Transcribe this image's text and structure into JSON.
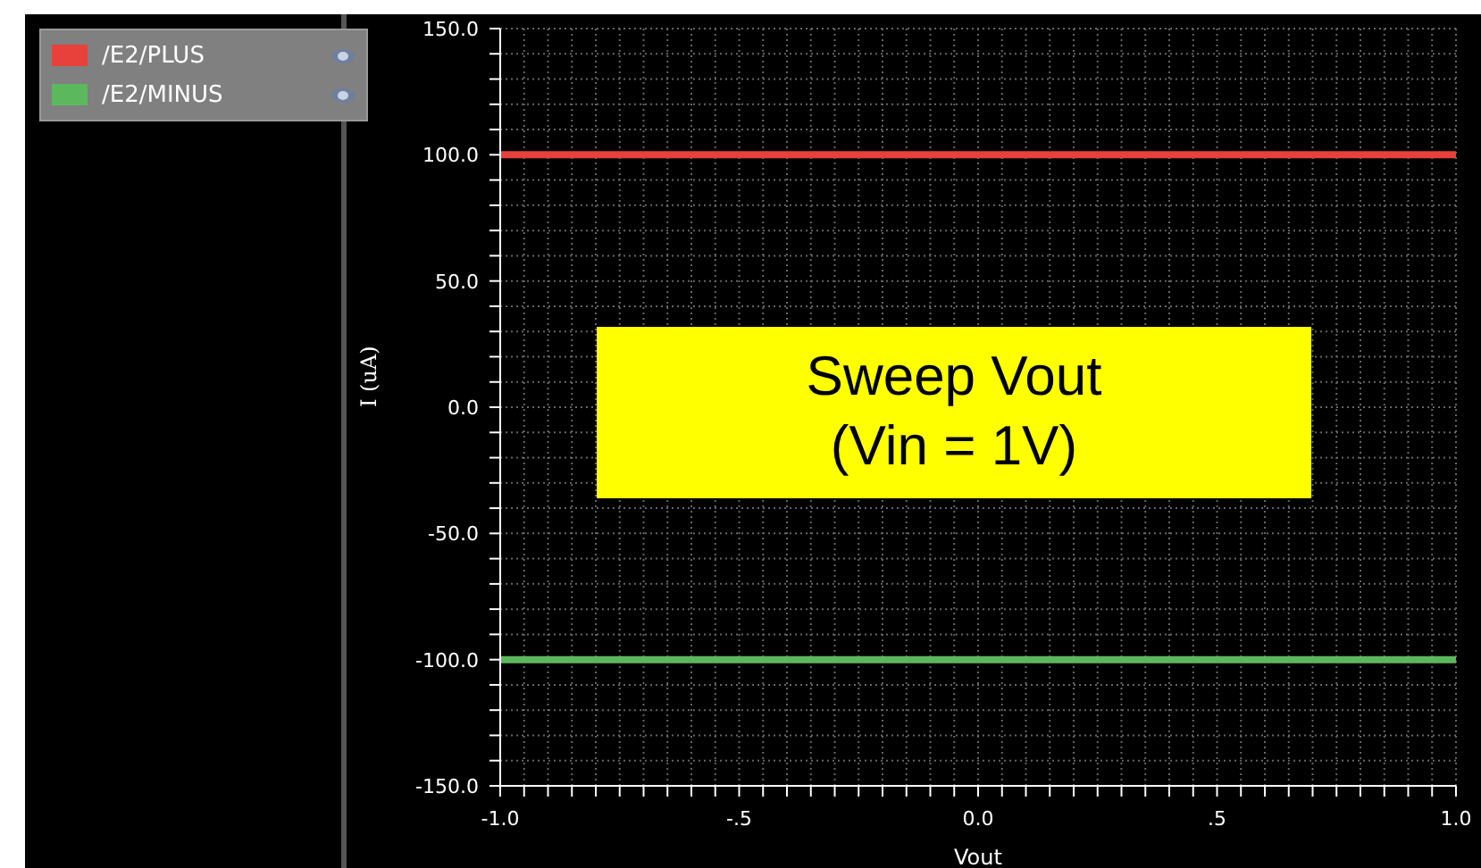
{
  "chart_data": {
    "type": "line",
    "xlabel": "Vout",
    "ylabel": "I (uA)",
    "annotations": [
      "Sweep Vout\n(Vin = 1V)"
    ],
    "x": [
      -1,
      1
    ],
    "series": [
      {
        "name": "/E2/PLUS",
        "color": "#e8403a",
        "values": [
          100,
          100
        ]
      },
      {
        "name": "/E2/MINUS",
        "color": "#5cb85c",
        "values": [
          -100,
          -100
        ]
      }
    ],
    "xlim": [
      -1,
      1
    ],
    "xticks": [
      {
        "value": -1,
        "label": "-1.0"
      },
      {
        "value": -0.95,
        "label": null
      },
      {
        "value": -0.9,
        "label": null
      },
      {
        "value": -0.85,
        "label": null
      },
      {
        "value": -0.8,
        "label": null
      },
      {
        "value": -0.75,
        "label": null
      },
      {
        "value": -0.7,
        "label": null
      },
      {
        "value": -0.65,
        "label": null
      },
      {
        "value": -0.6,
        "label": null
      },
      {
        "value": -0.55,
        "label": null
      },
      {
        "value": -0.5,
        "label": "-.5"
      },
      {
        "value": -0.45,
        "label": null
      },
      {
        "value": -0.4,
        "label": null
      },
      {
        "value": -0.35,
        "label": null
      },
      {
        "value": -0.3,
        "label": null
      },
      {
        "value": -0.25,
        "label": null
      },
      {
        "value": -0.2,
        "label": null
      },
      {
        "value": -0.15,
        "label": null
      },
      {
        "value": -0.1,
        "label": null
      },
      {
        "value": -0.05,
        "label": null
      },
      {
        "value": 0,
        "label": "0.0"
      },
      {
        "value": 0.05,
        "label": null
      },
      {
        "value": 0.1,
        "label": null
      },
      {
        "value": 0.15,
        "label": null
      },
      {
        "value": 0.2,
        "label": null
      },
      {
        "value": 0.25,
        "label": null
      },
      {
        "value": 0.3,
        "label": null
      },
      {
        "value": 0.35,
        "label": null
      },
      {
        "value": 0.4,
        "label": null
      },
      {
        "value": 0.45,
        "label": null
      },
      {
        "value": 0.5,
        "label": ".5"
      },
      {
        "value": 0.55,
        "label": null
      },
      {
        "value": 0.6,
        "label": null
      },
      {
        "value": 0.65,
        "label": null
      },
      {
        "value": 0.7,
        "label": null
      },
      {
        "value": 0.75,
        "label": null
      },
      {
        "value": 0.8,
        "label": null
      },
      {
        "value": 0.85,
        "label": null
      },
      {
        "value": 0.9,
        "label": null
      },
      {
        "value": 0.95,
        "label": null
      },
      {
        "value": 1,
        "label": "1.0"
      }
    ],
    "ylim": [
      -150,
      150
    ],
    "yticks": [
      {
        "value": -150,
        "label": "-150.0"
      },
      {
        "value": -140,
        "label": null
      },
      {
        "value": -130,
        "label": null
      },
      {
        "value": -120,
        "label": null
      },
      {
        "value": -110,
        "label": null
      },
      {
        "value": -100,
        "label": "-100.0"
      },
      {
        "value": -90,
        "label": null
      },
      {
        "value": -80,
        "label": null
      },
      {
        "value": -70,
        "label": null
      },
      {
        "value": -60,
        "label": null
      },
      {
        "value": -50,
        "label": "-50.0"
      },
      {
        "value": -40,
        "label": null
      },
      {
        "value": -30,
        "label": null
      },
      {
        "value": -20,
        "label": null
      },
      {
        "value": -10,
        "label": null
      },
      {
        "value": 0,
        "label": "0.0"
      },
      {
        "value": 10,
        "label": null
      },
      {
        "value": 20,
        "label": null
      },
      {
        "value": 30,
        "label": null
      },
      {
        "value": 40,
        "label": null
      },
      {
        "value": 50,
        "label": "50.0"
      },
      {
        "value": 60,
        "label": null
      },
      {
        "value": 70,
        "label": null
      },
      {
        "value": 80,
        "label": null
      },
      {
        "value": 90,
        "label": null
      },
      {
        "value": 100,
        "label": "100.0"
      },
      {
        "value": 110,
        "label": null
      },
      {
        "value": 120,
        "label": null
      },
      {
        "value": 130,
        "label": null
      },
      {
        "value": 140,
        "label": null
      },
      {
        "value": 150,
        "label": "150.0"
      }
    ],
    "grid": true,
    "legend": "top left",
    "marker": "none",
    "line_style": "solid"
  }
}
